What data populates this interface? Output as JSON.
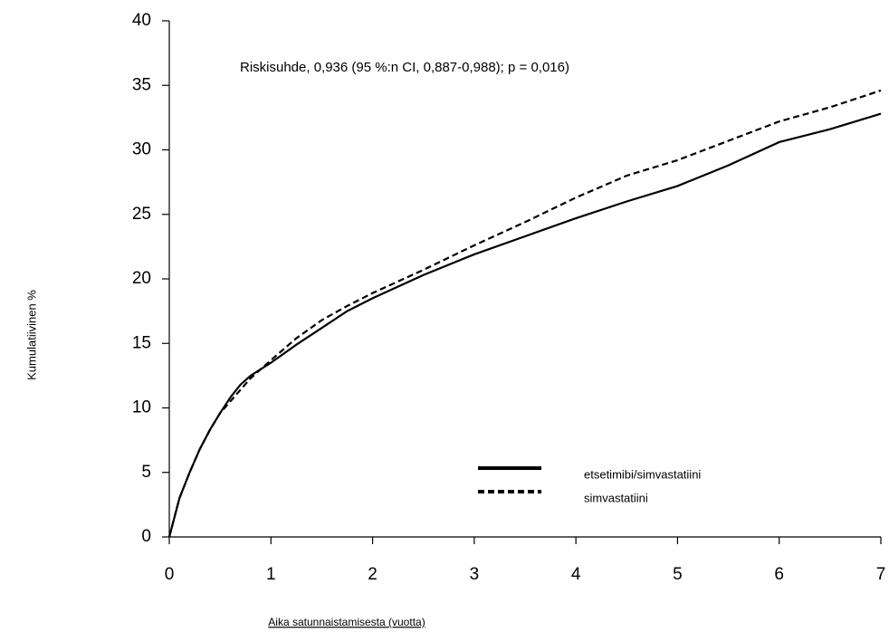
{
  "chart_data": {
    "type": "line",
    "annotation": "Riskisuhde, 0,936 (95 %:n CI, 0,887-0,988); p = 0,016)",
    "x_label": "Aika satunnaistamisesta (vuotta)",
    "y_label": "Kumulatiivinen %",
    "x": [
      0,
      0.05,
      0.1,
      0.2,
      0.3,
      0.4,
      0.5,
      0.6,
      0.7,
      0.8,
      1,
      1.25,
      1.5,
      1.75,
      2,
      2.5,
      3,
      3.5,
      4,
      4.5,
      5,
      5.5,
      6,
      6.5,
      7
    ],
    "series": [
      {
        "name": "etsetimibi/simvastatiini",
        "color": "#000000",
        "line_style": "solid",
        "values": [
          0,
          1.5,
          3,
          5,
          6.8,
          8.3,
          9.6,
          10.8,
          11.8,
          12.5,
          13.5,
          14.9,
          16.2,
          17.5,
          18.5,
          20.3,
          21.9,
          23.3,
          24.7,
          26,
          27.2,
          28.8,
          30.6,
          31.6,
          32.8
        ]
      },
      {
        "name": "simvastatiini",
        "color": "#000000",
        "line_style": "dashed",
        "values": [
          0,
          1.5,
          3,
          5,
          6.8,
          8.3,
          9.6,
          10.5,
          11.4,
          12.3,
          13.7,
          15.4,
          16.8,
          17.9,
          18.9,
          20.7,
          22.6,
          24.4,
          26.3,
          28,
          29.2,
          30.7,
          32.2,
          33.3,
          34.6
        ]
      }
    ],
    "xlim": [
      0,
      7
    ],
    "xticks": [
      0,
      1,
      2,
      3,
      4,
      5,
      6,
      7
    ],
    "ylim": [
      0,
      40
    ],
    "yticks": [
      0,
      5,
      10,
      15,
      20,
      25,
      30,
      35,
      40
    ]
  }
}
